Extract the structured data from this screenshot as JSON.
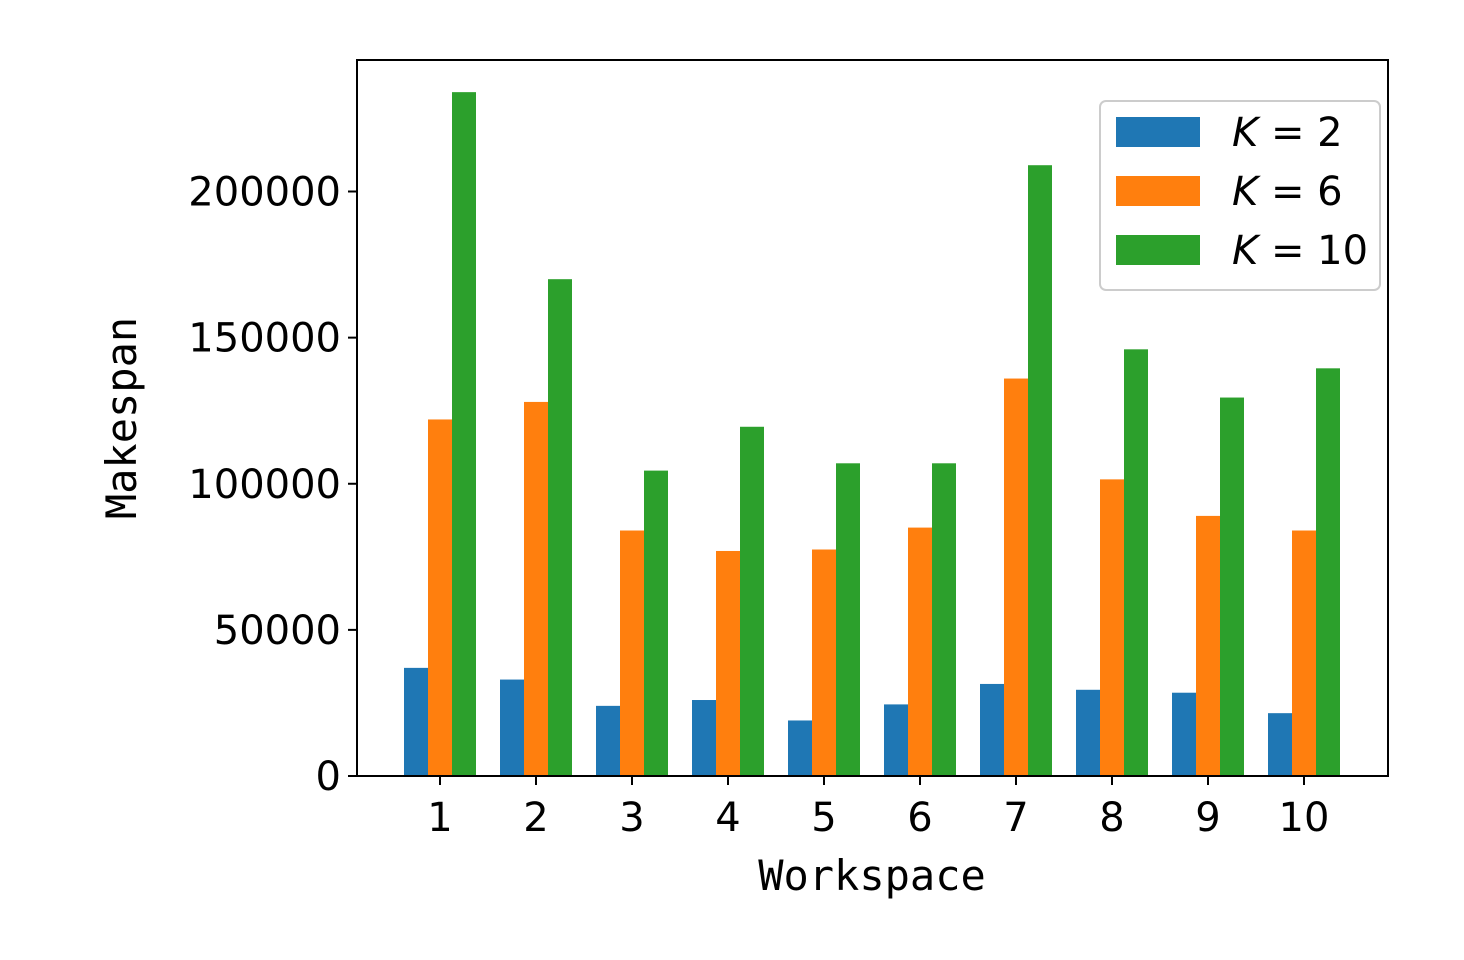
{
  "chart_data": {
    "type": "bar",
    "xlabel": "Workspace",
    "ylabel": "Makespan",
    "categories": [
      "1",
      "2",
      "3",
      "4",
      "5",
      "6",
      "7",
      "8",
      "9",
      "10"
    ],
    "yticks": [
      "0",
      "50000",
      "100000",
      "150000",
      "200000"
    ],
    "ytick_values": [
      0,
      50000,
      100000,
      150000,
      200000
    ],
    "ylim": [
      0,
      245000
    ],
    "legend_position": "top-right",
    "grid": false,
    "series": [
      {
        "name": "K = 2",
        "legend_var": "K",
        "legend_value": "= 2",
        "color": "#1f77b4",
        "values": [
          37000,
          33000,
          24000,
          26000,
          19000,
          24500,
          31500,
          29500,
          28500,
          21500
        ]
      },
      {
        "name": "K = 6",
        "legend_var": "K",
        "legend_value": "= 6",
        "color": "#ff7f0e",
        "values": [
          122000,
          128000,
          84000,
          77000,
          77500,
          85000,
          136000,
          101500,
          89000,
          84000
        ]
      },
      {
        "name": "K = 10",
        "legend_var": "K",
        "legend_value": "= 10",
        "color": "#2ca02c",
        "values": [
          234000,
          170000,
          104500,
          119500,
          107000,
          107000,
          209000,
          146000,
          129500,
          139500
        ]
      }
    ]
  }
}
